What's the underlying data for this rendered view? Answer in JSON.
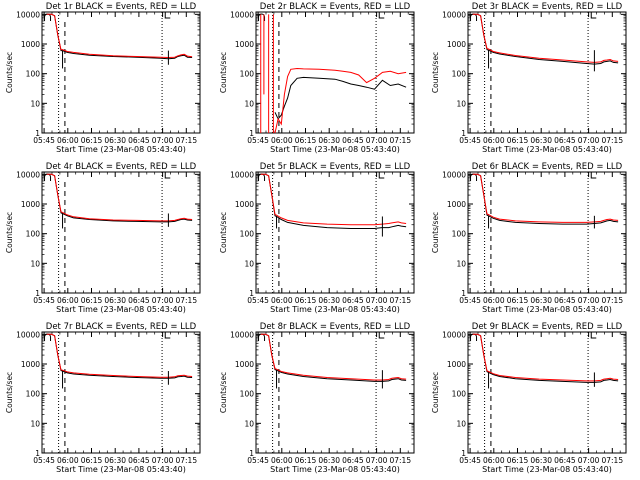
{
  "figure": {
    "xlabel": "Start Time (23-Mar-08 05:43:40)",
    "ylabel": "Counts/sec",
    "x_tick_labels": [
      "05:45",
      "06:00",
      "06:15",
      "06:30",
      "06:45",
      "07:00",
      "07:15"
    ],
    "y_tick_labels": [
      "1",
      "10",
      "100",
      "1000",
      "10000"
    ],
    "colors": {
      "events": "#000000",
      "lld": "#ff0000"
    }
  },
  "chart_data": [
    {
      "type": "line",
      "title": "Det 1r BLACK = Events, RED = LLD",
      "x_minutes": [
        3,
        6,
        8,
        10,
        12,
        13,
        16,
        20,
        30,
        45,
        60,
        75,
        80,
        84,
        86,
        88,
        90,
        92,
        95
      ],
      "series": [
        {
          "values": [
            10000,
            10000,
            9000,
            2000,
            600,
            600,
            520,
            480,
            420,
            380,
            360,
            330,
            320,
            330,
            380,
            400,
            420,
            360,
            350
          ]
        },
        {
          "values": [
            10000,
            10000,
            9000,
            2000,
            650,
            650,
            560,
            520,
            450,
            400,
            380,
            360,
            350,
            360,
            400,
            430,
            450,
            390,
            370
          ]
        }
      ],
      "dips": [
        {
          "x": 13,
          "y": 150
        },
        {
          "x": 80,
          "y": 200
        }
      ],
      "vlines_dashed": [
        14.5
      ],
      "vlines_dotted": [
        10.5,
        76
      ],
      "marker_x": 78,
      "arch_x": 3.5,
      "xlim": [
        0,
        100
      ],
      "ylim": [
        1,
        12000
      ],
      "ylog": true
    },
    {
      "type": "line",
      "title": "Det 2r BLACK = Events, RED = LLD",
      "x_minutes": [
        12,
        14,
        16,
        18,
        20,
        22,
        26,
        30,
        40,
        50,
        55,
        60,
        65,
        70,
        75,
        80,
        85,
        90,
        95
      ],
      "series": [
        {
          "values": [
            5,
            3,
            4,
            8,
            15,
            40,
            70,
            75,
            70,
            65,
            55,
            45,
            40,
            35,
            30,
            60,
            40,
            45,
            35
          ]
        },
        {
          "values": [
            1,
            3,
            2,
            20,
            80,
            140,
            150,
            145,
            140,
            130,
            120,
            110,
            90,
            50,
            70,
            110,
            120,
            100,
            110
          ]
        }
      ],
      "spikes_red": [
        {
          "x": 3,
          "y_from": 10000,
          "y_to": 1
        },
        {
          "x": 5,
          "y_from": 10000,
          "y_to": 20
        },
        {
          "x": 8,
          "y_from": 10000,
          "y_to": 1
        },
        {
          "x": 11,
          "y_from": 10000,
          "y_to": 1
        }
      ],
      "vlines_dashed": [
        14.5
      ],
      "vlines_dotted": [
        10.5,
        76
      ],
      "marker_x": 78,
      "arch_x": 3.5,
      "xlim": [
        0,
        100
      ],
      "ylim": [
        1,
        12000
      ],
      "ylog": true
    },
    {
      "type": "line",
      "title": "Det 3r BLACK = Events, RED = LLD",
      "x_minutes": [
        3,
        6,
        8,
        10,
        12,
        13,
        16,
        20,
        30,
        45,
        60,
        75,
        80,
        84,
        86,
        88,
        90,
        92,
        95
      ],
      "series": [
        {
          "values": [
            10000,
            10000,
            9000,
            2000,
            650,
            620,
            520,
            460,
            380,
            300,
            260,
            220,
            210,
            220,
            250,
            260,
            270,
            240,
            230
          ]
        },
        {
          "values": [
            10000,
            10000,
            9000,
            2000,
            700,
            680,
            560,
            500,
            410,
            330,
            290,
            250,
            240,
            250,
            280,
            290,
            300,
            270,
            260
          ]
        }
      ],
      "dips": [
        {
          "x": 13,
          "y": 150
        },
        {
          "x": 80,
          "y": 120
        }
      ],
      "vlines_dashed": [
        14.5
      ],
      "vlines_dotted": [
        10.5,
        76
      ],
      "marker_x": 78,
      "arch_x": 3.5,
      "xlim": [
        0,
        100
      ],
      "ylim": [
        1,
        12000
      ],
      "ylog": true
    },
    {
      "type": "line",
      "title": "Det 4r BLACK = Events, RED = LLD",
      "x_minutes": [
        3,
        6,
        8,
        10,
        12,
        13,
        16,
        20,
        30,
        45,
        60,
        75,
        80,
        84,
        86,
        88,
        90,
        92,
        95
      ],
      "series": [
        {
          "values": [
            10000,
            10000,
            9000,
            2000,
            500,
            480,
            400,
            340,
            300,
            270,
            260,
            250,
            250,
            260,
            280,
            300,
            310,
            290,
            280
          ]
        },
        {
          "values": [
            10000,
            10000,
            9000,
            2000,
            540,
            520,
            430,
            370,
            320,
            290,
            280,
            270,
            270,
            280,
            300,
            320,
            330,
            310,
            300
          ]
        }
      ],
      "dips": [
        {
          "x": 13,
          "y": 150
        },
        {
          "x": 80,
          "y": 170
        }
      ],
      "vlines_dashed": [
        14.5
      ],
      "vlines_dotted": [
        10.5,
        76
      ],
      "marker_x": 78,
      "arch_x": 3.5,
      "xlim": [
        0,
        100
      ],
      "ylim": [
        1,
        12000
      ],
      "ylog": true
    },
    {
      "type": "line",
      "title": "Det 5r BLACK = Events, RED = LLD",
      "x_minutes": [
        3,
        6,
        8,
        10,
        12,
        13,
        16,
        20,
        30,
        45,
        60,
        75,
        80,
        84,
        86,
        88,
        90,
        92,
        95
      ],
      "series": [
        {
          "values": [
            10000,
            10000,
            9000,
            2000,
            400,
            380,
            300,
            240,
            190,
            160,
            150,
            150,
            160,
            160,
            170,
            180,
            190,
            180,
            170
          ]
        },
        {
          "values": [
            10000,
            10000,
            9000,
            2000,
            450,
            420,
            340,
            280,
            230,
            210,
            200,
            200,
            210,
            220,
            230,
            240,
            250,
            230,
            220
          ]
        }
      ],
      "dips": [
        {
          "x": 13,
          "y": 150
        },
        {
          "x": 80,
          "y": 80
        }
      ],
      "vlines_dashed": [
        14.5
      ],
      "vlines_dotted": [
        10.5,
        76
      ],
      "marker_x": 78,
      "arch_x": 3.5,
      "xlim": [
        0,
        100
      ],
      "ylim": [
        1,
        12000
      ],
      "ylog": true
    },
    {
      "type": "line",
      "title": "Det 6r BLACK = Events, RED = LLD",
      "x_minutes": [
        3,
        6,
        8,
        10,
        12,
        13,
        16,
        20,
        30,
        45,
        60,
        75,
        80,
        84,
        86,
        88,
        90,
        92,
        95
      ],
      "series": [
        {
          "values": [
            10000,
            10000,
            9000,
            2000,
            420,
            400,
            330,
            280,
            240,
            220,
            210,
            210,
            220,
            230,
            250,
            270,
            280,
            260,
            250
          ]
        },
        {
          "values": [
            10000,
            10000,
            9000,
            2000,
            460,
            440,
            360,
            310,
            270,
            250,
            240,
            240,
            250,
            260,
            280,
            300,
            310,
            290,
            280
          ]
        }
      ],
      "dips": [
        {
          "x": 13,
          "y": 150
        },
        {
          "x": 80,
          "y": 150
        }
      ],
      "vlines_dashed": [
        14.5
      ],
      "vlines_dotted": [
        10.5,
        76
      ],
      "marker_x": 78,
      "arch_x": 3.5,
      "xlim": [
        0,
        100
      ],
      "ylim": [
        1,
        12000
      ],
      "ylog": true
    },
    {
      "type": "line",
      "title": "Det 7r BLACK = Events, RED = LLD",
      "x_minutes": [
        3,
        6,
        8,
        10,
        12,
        13,
        16,
        20,
        30,
        45,
        60,
        75,
        80,
        84,
        86,
        88,
        90,
        92,
        95
      ],
      "series": [
        {
          "values": [
            10000,
            10000,
            9000,
            2000,
            600,
            580,
            500,
            460,
            420,
            380,
            350,
            330,
            330,
            340,
            370,
            380,
            390,
            360,
            350
          ]
        },
        {
          "values": [
            10000,
            10000,
            9000,
            2000,
            640,
            620,
            540,
            500,
            450,
            410,
            380,
            360,
            360,
            370,
            400,
            410,
            420,
            390,
            380
          ]
        }
      ],
      "dips": [
        {
          "x": 13,
          "y": 150
        },
        {
          "x": 80,
          "y": 200
        }
      ],
      "vlines_dashed": [
        14.5
      ],
      "vlines_dotted": [
        10.5,
        76
      ],
      "marker_x": 78,
      "arch_x": 3.5,
      "xlim": [
        0,
        100
      ],
      "ylim": [
        1,
        12000
      ],
      "ylog": true
    },
    {
      "type": "line",
      "title": "Det 8r BLACK = Events, RED = LLD",
      "x_minutes": [
        3,
        6,
        8,
        10,
        12,
        13,
        16,
        20,
        30,
        45,
        60,
        75,
        80,
        84,
        86,
        88,
        90,
        92,
        95
      ],
      "series": [
        {
          "values": [
            10000,
            10000,
            9000,
            2000,
            650,
            620,
            520,
            460,
            380,
            320,
            290,
            260,
            260,
            270,
            300,
            310,
            320,
            290,
            280
          ]
        },
        {
          "values": [
            10000,
            10000,
            9000,
            2000,
            700,
            670,
            560,
            500,
            420,
            350,
            320,
            290,
            290,
            300,
            330,
            340,
            350,
            320,
            310
          ]
        }
      ],
      "dips": [
        {
          "x": 13,
          "y": 150
        },
        {
          "x": 80,
          "y": 150
        }
      ],
      "vlines_dashed": [
        14.5
      ],
      "vlines_dotted": [
        10.5,
        76
      ],
      "marker_x": 78,
      "arch_x": 3.5,
      "xlim": [
        0,
        100
      ],
      "ylim": [
        1,
        12000
      ],
      "ylog": true
    },
    {
      "type": "line",
      "title": "Det 9r BLACK = Events, RED = LLD",
      "x_minutes": [
        3,
        6,
        8,
        10,
        12,
        13,
        16,
        20,
        30,
        45,
        60,
        75,
        80,
        84,
        86,
        88,
        90,
        92,
        95
      ],
      "series": [
        {
          "values": [
            10000,
            10000,
            9000,
            2000,
            550,
            520,
            440,
            380,
            320,
            280,
            260,
            240,
            240,
            250,
            280,
            290,
            300,
            280,
            270
          ]
        },
        {
          "values": [
            10000,
            10000,
            9000,
            2000,
            590,
            560,
            470,
            410,
            350,
            310,
            290,
            270,
            270,
            280,
            310,
            320,
            330,
            310,
            300
          ]
        }
      ],
      "dips": [
        {
          "x": 13,
          "y": 150
        },
        {
          "x": 80,
          "y": 170
        }
      ],
      "vlines_dashed": [
        14.5
      ],
      "vlines_dotted": [
        10.5,
        76
      ],
      "marker_x": 78,
      "arch_x": 3.5,
      "xlim": [
        0,
        100
      ],
      "ylim": [
        1,
        12000
      ],
      "ylog": true
    }
  ]
}
